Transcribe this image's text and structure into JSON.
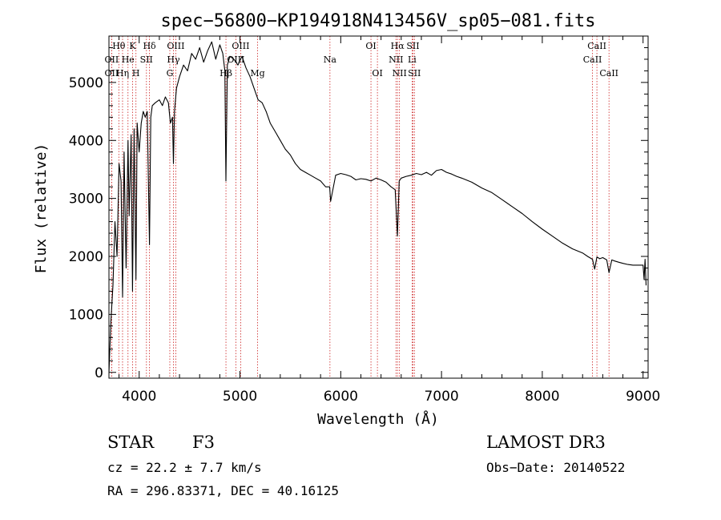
{
  "chart_data": {
    "type": "line",
    "title": "spec−56800−KP194918N413456V_sp05−081.fits",
    "xlabel": "Wavelength (Å)",
    "ylabel": "Flux (relative)",
    "xlim": [
      3700,
      9050
    ],
    "ylim": [
      -100,
      5800
    ],
    "xticks": [
      4000,
      5000,
      6000,
      7000,
      8000,
      9000
    ],
    "yticks": [
      0,
      1000,
      2000,
      3000,
      4000,
      5000
    ],
    "x_tick_labels": [
      "4000",
      "5000",
      "6000",
      "7000",
      "8000",
      "9000"
    ],
    "y_tick_labels": [
      "0",
      "1000",
      "2000",
      "3000",
      "4000",
      "5000"
    ],
    "spectrum": {
      "name": "flux",
      "x": [
        3700,
        3720,
        3740,
        3760,
        3780,
        3800,
        3820,
        3835,
        3850,
        3870,
        3889,
        3900,
        3920,
        3934,
        3950,
        3968,
        3980,
        4000,
        4020,
        4040,
        4060,
        4080,
        4102,
        4115,
        4130,
        4160,
        4200,
        4230,
        4260,
        4290,
        4310,
        4330,
        4340,
        4350,
        4370,
        4400,
        4440,
        4480,
        4520,
        4560,
        4600,
        4640,
        4680,
        4720,
        4760,
        4800,
        4830,
        4850,
        4861,
        4875,
        4900,
        4940,
        4980,
        5020,
        5060,
        5100,
        5140,
        5180,
        5220,
        5260,
        5300,
        5350,
        5400,
        5450,
        5500,
        5550,
        5600,
        5650,
        5700,
        5750,
        5800,
        5850,
        5890,
        5900,
        5950,
        6000,
        6050,
        6100,
        6150,
        6200,
        6250,
        6300,
        6350,
        6400,
        6450,
        6500,
        6540,
        6563,
        6580,
        6600,
        6650,
        6700,
        6750,
        6800,
        6850,
        6900,
        6950,
        7000,
        7050,
        7100,
        7150,
        7200,
        7300,
        7400,
        7500,
        7600,
        7700,
        7800,
        7900,
        8000,
        8100,
        8200,
        8300,
        8400,
        8450,
        8498,
        8520,
        8542,
        8570,
        8600,
        8640,
        8662,
        8690,
        8720,
        8760,
        8800,
        8850,
        8900,
        8950,
        9000,
        9010,
        9020,
        9030
      ],
      "y": [
        0,
        900,
        1500,
        2600,
        2000,
        3600,
        3300,
        1300,
        3800,
        1800,
        4000,
        2700,
        4100,
        1400,
        4200,
        1600,
        4300,
        3800,
        4300,
        4500,
        4400,
        4500,
        2200,
        4400,
        4600,
        4650,
        4700,
        4600,
        4750,
        4650,
        4300,
        4400,
        3600,
        4500,
        4900,
        5100,
        5300,
        5200,
        5500,
        5400,
        5600,
        5350,
        5550,
        5700,
        5400,
        5650,
        5500,
        5200,
        3300,
        5300,
        5450,
        5400,
        5300,
        5450,
        5250,
        5100,
        4900,
        4700,
        4650,
        4500,
        4300,
        4150,
        4000,
        3850,
        3750,
        3600,
        3500,
        3450,
        3400,
        3350,
        3300,
        3200,
        3200,
        2950,
        3400,
        3430,
        3410,
        3380,
        3320,
        3340,
        3330,
        3300,
        3350,
        3320,
        3280,
        3200,
        3150,
        2350,
        3300,
        3350,
        3380,
        3400,
        3430,
        3410,
        3450,
        3400,
        3480,
        3500,
        3450,
        3420,
        3380,
        3350,
        3280,
        3180,
        3100,
        2980,
        2860,
        2740,
        2600,
        2470,
        2350,
        2230,
        2130,
        2060,
        2000,
        1950,
        1780,
        1990,
        1960,
        1980,
        1940,
        1720,
        1940,
        1920,
        1900,
        1880,
        1860,
        1850,
        1850,
        1850,
        1600,
        1950,
        1500
      ]
    },
    "lines": [
      {
        "label": "Hθ",
        "wavelength": 3798,
        "tier": 1
      },
      {
        "label": "OII",
        "wavelength": 3727,
        "tier": 2
      },
      {
        "label": "OII",
        "wavelength": 3727,
        "tier": 3
      },
      {
        "label": "He",
        "wavelength": 3889,
        "tier": 2
      },
      {
        "label": "Hη",
        "wavelength": 3835,
        "tier": 3
      },
      {
        "label": "K",
        "wavelength": 3934,
        "tier": 1
      },
      {
        "label": "H",
        "wavelength": 3968,
        "tier": 3
      },
      {
        "label": "SII",
        "wavelength": 4072,
        "tier": 2
      },
      {
        "label": "Hδ",
        "wavelength": 4102,
        "tier": 1
      },
      {
        "label": "OIII",
        "wavelength": 4363,
        "tier": 1
      },
      {
        "label": "Hγ",
        "wavelength": 4340,
        "tier": 2
      },
      {
        "label": "G",
        "wavelength": 4304,
        "tier": 3
      },
      {
        "label": "Hβ",
        "wavelength": 4861,
        "tier": 3
      },
      {
        "label": "OIII",
        "wavelength": 5007,
        "tier": 1
      },
      {
        "label": "OIII",
        "wavelength": 4959,
        "tier": 2
      },
      {
        "label": "Mg",
        "wavelength": 5175,
        "tier": 3
      },
      {
        "label": "Na",
        "wavelength": 5893,
        "tier": 2
      },
      {
        "label": "OI",
        "wavelength": 6300,
        "tier": 1
      },
      {
        "label": "OI",
        "wavelength": 6364,
        "tier": 3
      },
      {
        "label": "Hα",
        "wavelength": 6563,
        "tier": 1
      },
      {
        "label": "NII",
        "wavelength": 6548,
        "tier": 2
      },
      {
        "label": "NII",
        "wavelength": 6583,
        "tier": 3
      },
      {
        "label": "SII",
        "wavelength": 6717,
        "tier": 1
      },
      {
        "label": "SII",
        "wavelength": 6731,
        "tier": 3
      },
      {
        "label": "Li",
        "wavelength": 6708,
        "tier": 2
      },
      {
        "label": "CaII",
        "wavelength": 8542,
        "tier": 1
      },
      {
        "label": "CaII",
        "wavelength": 8498,
        "tier": 2
      },
      {
        "label": "CaII",
        "wavelength": 8662,
        "tier": 3
      }
    ],
    "line_color": "#cc2222",
    "spectrum_color": "#000000",
    "grid": false
  },
  "footer": {
    "class_label": "STAR",
    "subclass": "F3",
    "redshift": "cz = 22.2 ± 7.7 km/s",
    "coords": "RA = 296.83371, DEC =  40.16125",
    "survey": "LAMOST DR3",
    "obs_date": "Obs−Date: 20140522"
  }
}
